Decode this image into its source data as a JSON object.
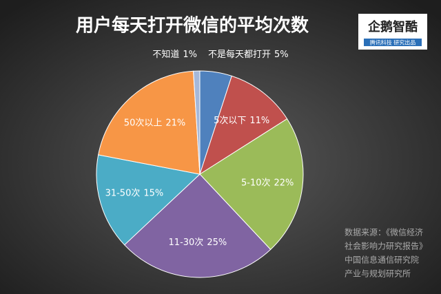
{
  "chart_data": {
    "type": "pie",
    "title": "用户每天打开微信的平均次数",
    "categories": [
      "不是每天都打开",
      "5次以下",
      "5-10次",
      "11-30次",
      "31-50次",
      "50次以上",
      "不知道"
    ],
    "values": [
      5,
      11,
      22,
      25,
      15,
      21,
      1
    ],
    "value_labels": [
      "5%",
      "11%",
      "22%",
      "25%",
      "15%",
      "21%",
      "1%"
    ],
    "colors": [
      "#4f81bd",
      "#c0504d",
      "#9bbb59",
      "#8064a2",
      "#4bacc6",
      "#f79646",
      "#a5b8d9"
    ]
  },
  "logo": {
    "name": "企鹅智酷",
    "tagline": "腾讯科技 研究出品"
  },
  "source": [
    "数据来源：《微信经济",
    "社会影响力研究报告》",
    "中国信息通信研究院",
    "产业与规划研究所"
  ]
}
